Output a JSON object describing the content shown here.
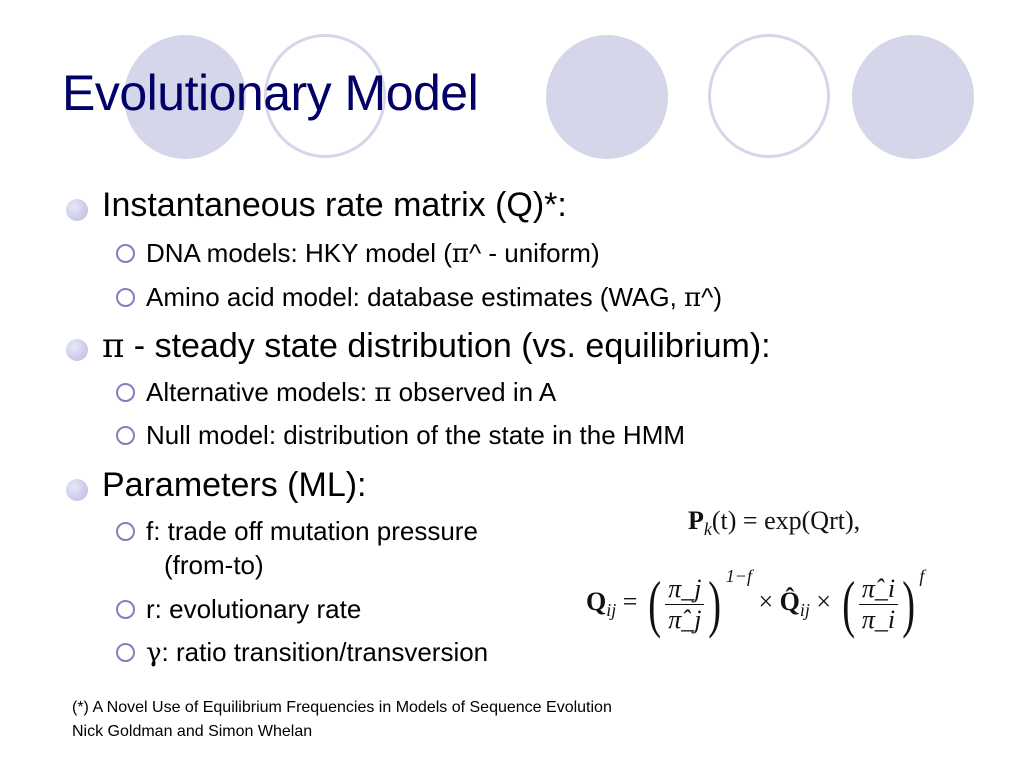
{
  "title": "Evolutionary Model",
  "bullets": [
    {
      "text": "Instantaneous rate matrix (Q)*:",
      "sub": [
        {
          "pre": "DNA models: HKY model (",
          "sym": "π",
          "post": "^ - uniform)"
        },
        {
          "pre": "Amino acid model: database estimates (WAG, ",
          "sym": "π",
          "post": "^)"
        }
      ]
    },
    {
      "sym": "π",
      "text": " - steady state distribution (vs. equilibrium):",
      "sub": [
        {
          "pre": "Alternative models: ",
          "sym": "π",
          "post": " observed in A"
        },
        {
          "pre": "Null model: distribution of the state in the HMM",
          "sym": "",
          "post": ""
        }
      ]
    },
    {
      "text": "Parameters (ML):",
      "sub": [
        {
          "pre": "f: trade off mutation pressure",
          "line2": "(from-to)"
        },
        {
          "pre": "r: evolutionary rate"
        },
        {
          "sym": "γ",
          "post": ": ratio transition/transversion"
        }
      ]
    }
  ],
  "formula": {
    "eq1_lhs": "P",
    "eq1_sub": "k",
    "eq1_rest": "(t) = exp(Qrt),",
    "eq2_lhs": "Q",
    "eq2_sub": "ij",
    "eq2_eq": "=",
    "num1": "π_j",
    "den1": "π̂_j",
    "exp1": "1−f",
    "times": "×",
    "qhat": "Q̂",
    "qhat_sub": "ij",
    "num2": "π̂_i",
    "den2": "π_i",
    "exp2": "f"
  },
  "footnote": {
    "line1": "(*) A Novel Use of Equilibrium Frequencies in Models of Sequence Evolution",
    "line2": "Nick Goldman and Simon Whelan"
  },
  "colors": {
    "title": "#000066",
    "circle": "#d6d6ea"
  }
}
